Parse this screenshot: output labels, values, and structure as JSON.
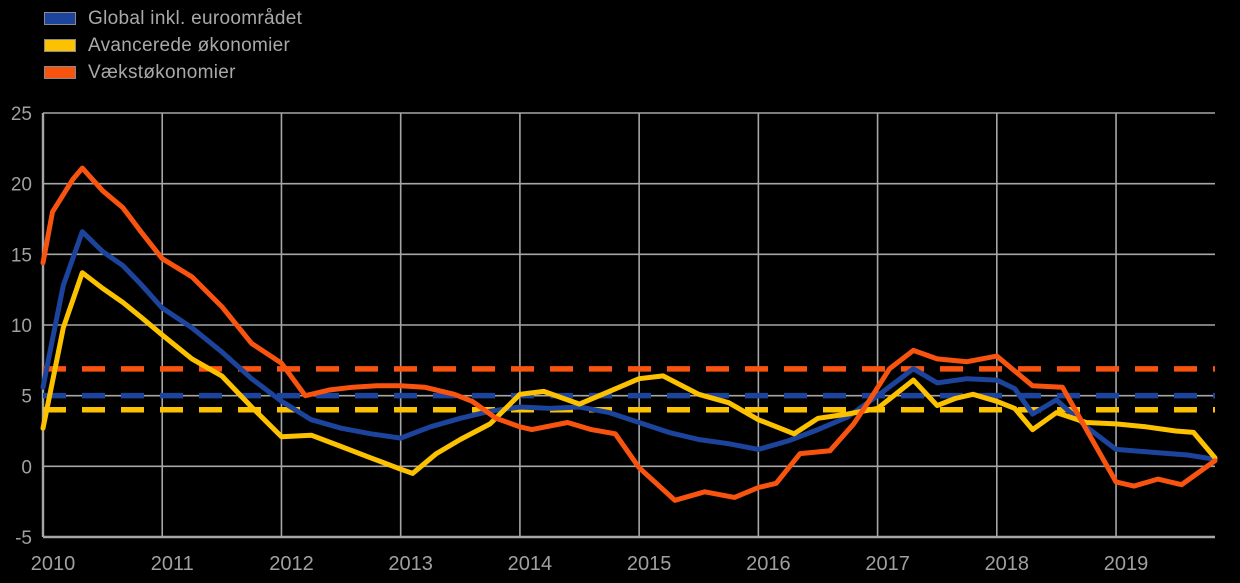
{
  "chart_data": {
    "type": "line",
    "title": "",
    "xlabel": "",
    "ylabel": "",
    "x_min": 2010,
    "x_max": 2019.83,
    "y_min": -5,
    "y_max": 25,
    "x_ticks": [
      "2010",
      "2011",
      "2012",
      "2013",
      "2014",
      "2015",
      "2016",
      "2017",
      "2018",
      "2019"
    ],
    "x_tick_values": [
      2010,
      2011,
      2012,
      2013,
      2014,
      2015,
      2016,
      2017,
      2018,
      2019
    ],
    "y_ticks": [
      "25",
      "20",
      "15",
      "10",
      "5",
      "0",
      "-5"
    ],
    "y_tick_values": [
      25,
      20,
      15,
      10,
      5,
      0,
      -5
    ],
    "grid": true,
    "legend_position": "top-left",
    "background_color": "#000000",
    "grid_color": "#a6a6a6",
    "text_color": "#a0a0a0",
    "series": [
      {
        "id": "global",
        "name": "Global inkl. euroområdet",
        "color": "#1c449c",
        "style": "solid",
        "average_dashed_line": 5.0,
        "points": [
          [
            2010.0,
            5.6
          ],
          [
            2010.08,
            9.0
          ],
          [
            2010.17,
            12.8
          ],
          [
            2010.33,
            16.6
          ],
          [
            2010.5,
            15.2
          ],
          [
            2010.67,
            14.2
          ],
          [
            2010.83,
            12.8
          ],
          [
            2011.0,
            11.2
          ],
          [
            2011.25,
            9.8
          ],
          [
            2011.5,
            8.1
          ],
          [
            2011.75,
            6.2
          ],
          [
            2012.0,
            4.6
          ],
          [
            2012.25,
            3.3
          ],
          [
            2012.5,
            2.7
          ],
          [
            2012.75,
            2.3
          ],
          [
            2013.0,
            2.0
          ],
          [
            2013.25,
            2.8
          ],
          [
            2013.5,
            3.4
          ],
          [
            2013.75,
            3.9
          ],
          [
            2014.0,
            4.2
          ],
          [
            2014.25,
            4.1
          ],
          [
            2014.5,
            4.2
          ],
          [
            2014.75,
            3.8
          ],
          [
            2015.0,
            3.1
          ],
          [
            2015.25,
            2.4
          ],
          [
            2015.5,
            1.9
          ],
          [
            2015.75,
            1.6
          ],
          [
            2016.0,
            1.2
          ],
          [
            2016.25,
            1.8
          ],
          [
            2016.5,
            2.6
          ],
          [
            2016.75,
            3.5
          ],
          [
            2017.0,
            5.0
          ],
          [
            2017.3,
            6.9
          ],
          [
            2017.5,
            5.9
          ],
          [
            2017.75,
            6.2
          ],
          [
            2018.0,
            6.1
          ],
          [
            2018.15,
            5.5
          ],
          [
            2018.3,
            3.7
          ],
          [
            2018.5,
            4.7
          ],
          [
            2018.75,
            2.8
          ],
          [
            2019.0,
            1.2
          ],
          [
            2019.3,
            1.0
          ],
          [
            2019.6,
            0.8
          ],
          [
            2019.83,
            0.5
          ]
        ]
      },
      {
        "id": "advanced",
        "name": "Avancerede økonomier",
        "color": "#fcc200",
        "style": "solid",
        "average_dashed_line": 4.0,
        "points": [
          [
            2010.0,
            2.7
          ],
          [
            2010.08,
            6.0
          ],
          [
            2010.17,
            9.8
          ],
          [
            2010.33,
            13.7
          ],
          [
            2010.5,
            12.6
          ],
          [
            2010.67,
            11.6
          ],
          [
            2010.83,
            10.5
          ],
          [
            2011.0,
            9.3
          ],
          [
            2011.25,
            7.6
          ],
          [
            2011.5,
            6.4
          ],
          [
            2011.75,
            4.2
          ],
          [
            2012.0,
            2.1
          ],
          [
            2012.25,
            2.2
          ],
          [
            2012.5,
            1.4
          ],
          [
            2012.75,
            0.6
          ],
          [
            2013.0,
            -0.2
          ],
          [
            2013.1,
            -0.5
          ],
          [
            2013.3,
            0.9
          ],
          [
            2013.5,
            1.9
          ],
          [
            2013.75,
            3.0
          ],
          [
            2014.0,
            5.1
          ],
          [
            2014.2,
            5.3
          ],
          [
            2014.5,
            4.4
          ],
          [
            2014.75,
            5.3
          ],
          [
            2015.0,
            6.2
          ],
          [
            2015.2,
            6.4
          ],
          [
            2015.5,
            5.1
          ],
          [
            2015.75,
            4.5
          ],
          [
            2016.0,
            3.3
          ],
          [
            2016.3,
            2.3
          ],
          [
            2016.5,
            3.4
          ],
          [
            2016.75,
            3.7
          ],
          [
            2017.0,
            4.1
          ],
          [
            2017.3,
            6.1
          ],
          [
            2017.5,
            4.3
          ],
          [
            2017.65,
            4.8
          ],
          [
            2017.8,
            5.1
          ],
          [
            2018.0,
            4.6
          ],
          [
            2018.15,
            4.1
          ],
          [
            2018.3,
            2.6
          ],
          [
            2018.5,
            3.8
          ],
          [
            2018.75,
            3.1
          ],
          [
            2019.0,
            3.0
          ],
          [
            2019.25,
            2.8
          ],
          [
            2019.5,
            2.5
          ],
          [
            2019.65,
            2.4
          ],
          [
            2019.83,
            0.6
          ]
        ]
      },
      {
        "id": "emerging",
        "name": "Vækstøkonomier",
        "color": "#f95310",
        "style": "solid",
        "average_dashed_line": 6.9,
        "points": [
          [
            2010.0,
            14.4
          ],
          [
            2010.08,
            18.0
          ],
          [
            2010.25,
            20.3
          ],
          [
            2010.33,
            21.1
          ],
          [
            2010.5,
            19.5
          ],
          [
            2010.67,
            18.3
          ],
          [
            2010.83,
            16.5
          ],
          [
            2011.0,
            14.7
          ],
          [
            2011.25,
            13.4
          ],
          [
            2011.5,
            11.3
          ],
          [
            2011.75,
            8.7
          ],
          [
            2012.0,
            7.3
          ],
          [
            2012.2,
            5.0
          ],
          [
            2012.4,
            5.4
          ],
          [
            2012.6,
            5.6
          ],
          [
            2012.8,
            5.7
          ],
          [
            2013.0,
            5.7
          ],
          [
            2013.2,
            5.6
          ],
          [
            2013.45,
            5.1
          ],
          [
            2013.6,
            4.6
          ],
          [
            2013.8,
            3.4
          ],
          [
            2014.0,
            2.8
          ],
          [
            2014.1,
            2.6
          ],
          [
            2014.4,
            3.1
          ],
          [
            2014.6,
            2.6
          ],
          [
            2014.8,
            2.3
          ],
          [
            2015.0,
            -0.1
          ],
          [
            2015.3,
            -2.4
          ],
          [
            2015.55,
            -1.8
          ],
          [
            2015.8,
            -2.2
          ],
          [
            2016.0,
            -1.5
          ],
          [
            2016.15,
            -1.2
          ],
          [
            2016.35,
            0.9
          ],
          [
            2016.6,
            1.1
          ],
          [
            2016.8,
            3.0
          ],
          [
            2016.95,
            4.9
          ],
          [
            2017.1,
            6.9
          ],
          [
            2017.3,
            8.2
          ],
          [
            2017.5,
            7.6
          ],
          [
            2017.75,
            7.4
          ],
          [
            2018.0,
            7.8
          ],
          [
            2018.3,
            5.7
          ],
          [
            2018.55,
            5.6
          ],
          [
            2019.0,
            -1.1
          ],
          [
            2019.15,
            -1.4
          ],
          [
            2019.35,
            -0.9
          ],
          [
            2019.55,
            -1.3
          ],
          [
            2019.83,
            0.4
          ]
        ]
      }
    ]
  }
}
